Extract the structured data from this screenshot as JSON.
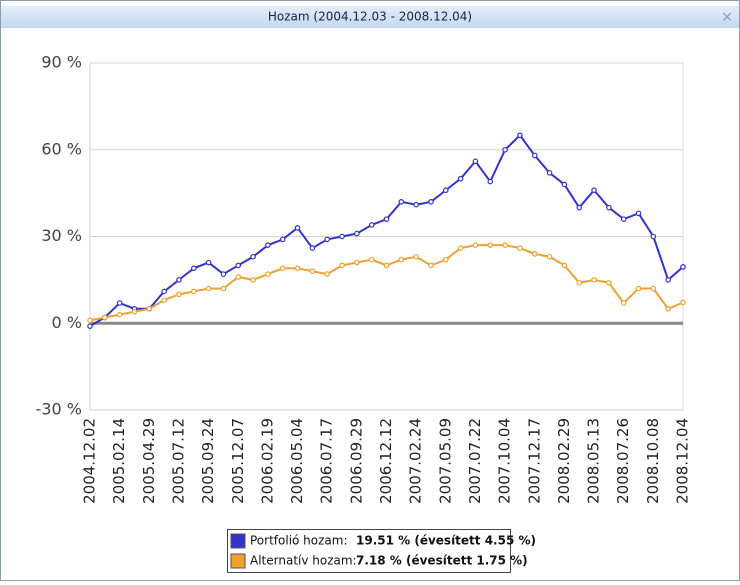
{
  "window": {
    "title": "Hozam (2004.12.03 - 2008.12.04)",
    "close": "×"
  },
  "chart_data": {
    "type": "line",
    "categories": [
      "2004.12.02",
      null,
      "2005.02.14",
      null,
      "2005.04.29",
      null,
      "2005.07.12",
      null,
      "2005.09.24",
      null,
      "2005.12.07",
      null,
      "2006.02.19",
      null,
      "2006.05.04",
      null,
      "2006.07.17",
      null,
      "2006.09.29",
      null,
      "2006.12.12",
      null,
      "2007.02.24",
      null,
      "2007.05.09",
      null,
      "2007.07.22",
      null,
      "2007.10.04",
      null,
      "2007.12.17",
      null,
      "2008.02.29",
      null,
      "2008.05.13",
      null,
      "2008.07.26",
      null,
      "2008.10.08",
      null,
      "2008.12.04"
    ],
    "series": [
      {
        "name": "Portfolió hozam:",
        "color": "#3333cc",
        "summary": "19.51 % (évesített 4.55 %)",
        "values": [
          -1,
          2,
          7,
          5,
          5,
          11,
          15,
          19,
          21,
          17,
          20,
          23,
          27,
          29,
          33,
          26,
          29,
          30,
          31,
          34,
          36,
          42,
          41,
          42,
          46,
          50,
          56,
          49,
          60,
          65,
          58,
          52,
          48,
          40,
          46,
          40,
          36,
          38,
          30,
          15,
          19.51
        ]
      },
      {
        "name": "Alternatív hozam:",
        "color": "#f0a030",
        "summary": "7.18 % (évesített 1.75 %)",
        "values": [
          1,
          2,
          3,
          4,
          5,
          8,
          10,
          11,
          12,
          12,
          16,
          15,
          17,
          19,
          19,
          18,
          17,
          20,
          21,
          22,
          20,
          22,
          23,
          20,
          22,
          26,
          27,
          27,
          27,
          26,
          24,
          23,
          20,
          14,
          15,
          14,
          7,
          12,
          12,
          5,
          7.18
        ]
      }
    ],
    "ylim": [
      -30,
      90
    ],
    "yticks": [
      {
        "value": -30,
        "label": "-30 %"
      },
      {
        "value": 0,
        "label": "0 %"
      },
      {
        "value": 30,
        "label": "30 %"
      },
      {
        "value": 60,
        "label": "60 %"
      },
      {
        "value": 90,
        "label": "90 %"
      }
    ],
    "grid": true
  }
}
